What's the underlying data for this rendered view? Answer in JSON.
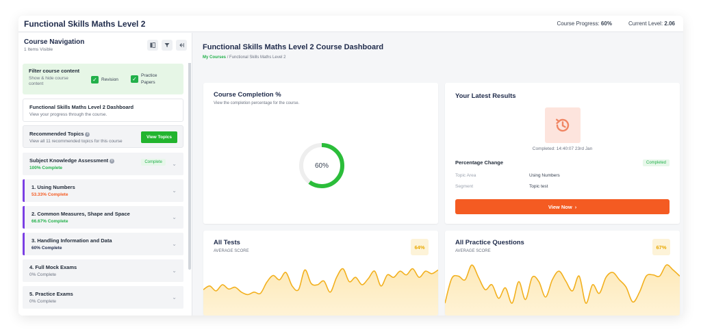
{
  "app": {
    "title": "Functional Skills Maths Level 2",
    "progress_label": "Course Progress:",
    "progress_value": "60%",
    "level_label": "Current Level:",
    "level_value": "2.06"
  },
  "sidebar": {
    "title": "Course Navigation",
    "subtitle": "1 Items Visible",
    "filter": {
      "title": "Filter course content",
      "desc": "Show & hide course content",
      "options": [
        {
          "label": "Revision",
          "checked": true
        },
        {
          "label": "Practice Papers",
          "checked": true
        }
      ]
    },
    "dashboard_card": {
      "title": "Functional Skills Maths Level 2 Dashboard",
      "desc": "View your progress through the course."
    },
    "recommended": {
      "title": "Recommended Topics",
      "desc": "View all 11 recommended topics for this course",
      "button": "View Topics"
    },
    "items": [
      {
        "title": "Subject Knowledge Assessment",
        "progress": "100% Complete",
        "color": "#22b04a",
        "badge": "Complete",
        "accent": false
      },
      {
        "title": "1. Using Numbers",
        "progress": "53.33% Complete",
        "color": "#f45b22",
        "badge": "",
        "accent": true
      },
      {
        "title": "2. Common Measures, Shape and Space",
        "progress": "66.67% Complete",
        "color": "#22b04a",
        "badge": "",
        "accent": true
      },
      {
        "title": "3. Handling Information and Data",
        "progress": "60% Complete",
        "color": "#1e2a4a",
        "badge": "",
        "accent": true
      },
      {
        "title": "4. Full Mock Exams",
        "progress": "0% Complete",
        "color": "#6b7280",
        "badge": "",
        "accent": false
      },
      {
        "title": "5. Practice Exams",
        "progress": "0% Complete",
        "color": "#6b7280",
        "badge": "",
        "accent": false
      }
    ]
  },
  "main": {
    "title": "Functional Skills Maths Level 2 Course Dashboard",
    "breadcrumb": {
      "link": "My Courses",
      "separator": "/",
      "current": "Functional Skills Maths Level 2"
    },
    "completion": {
      "title": "Course Completion %",
      "subtitle": "View the completion percentage for the course.",
      "value": 60,
      "label": "60%"
    },
    "results": {
      "title": "Your Latest Results",
      "completed": "Completed: 14:40:07 23rd Jan",
      "pc_title": "Percentage Change",
      "pc_badge": "Completed",
      "rows": [
        {
          "key": "Topic Area",
          "value": "Using Numbers"
        },
        {
          "key": "Segment",
          "value": "Topic test"
        }
      ],
      "button": "View Now",
      "icon": "history-icon"
    },
    "tests": {
      "title": "All Tests",
      "subtitle": "AVERAGE SCORE",
      "score": "64%"
    },
    "practice": {
      "title": "All Practice Questions",
      "subtitle": "AVERAGE SCORE",
      "score": "67%"
    }
  },
  "colors": {
    "brand_green": "#22b04a",
    "brand_orange": "#f45b22",
    "accent_purple": "#7b3fe4",
    "chart_line": "#f2b01e",
    "chart_fill": "#fde9b8"
  },
  "chart_data": [
    {
      "type": "area",
      "title": "All Tests",
      "series": [
        {
          "values": [
            42,
            48,
            40,
            50,
            43,
            46,
            38,
            34,
            38,
            36,
            54,
            65,
            58,
            70,
            48,
            42,
            74,
            52,
            50,
            56,
            38,
            62,
            76,
            55,
            62,
            50,
            60,
            72,
            48,
            66,
            62,
            72,
            66,
            76,
            62,
            72,
            68,
            74
          ]
        }
      ],
      "ylim": [
        0,
        100
      ]
    },
    {
      "type": "area",
      "title": "All Practice Questions",
      "series": [
        {
          "values": [
            20,
            60,
            64,
            58,
            82,
            62,
            42,
            50,
            28,
            45,
            20,
            55,
            26,
            62,
            55,
            30,
            58,
            72,
            56,
            40,
            64,
            20,
            50,
            36,
            62,
            70,
            58,
            46,
            22,
            38,
            64,
            66,
            64,
            82,
            74,
            64
          ]
        }
      ],
      "ylim": [
        0,
        100
      ]
    }
  ]
}
